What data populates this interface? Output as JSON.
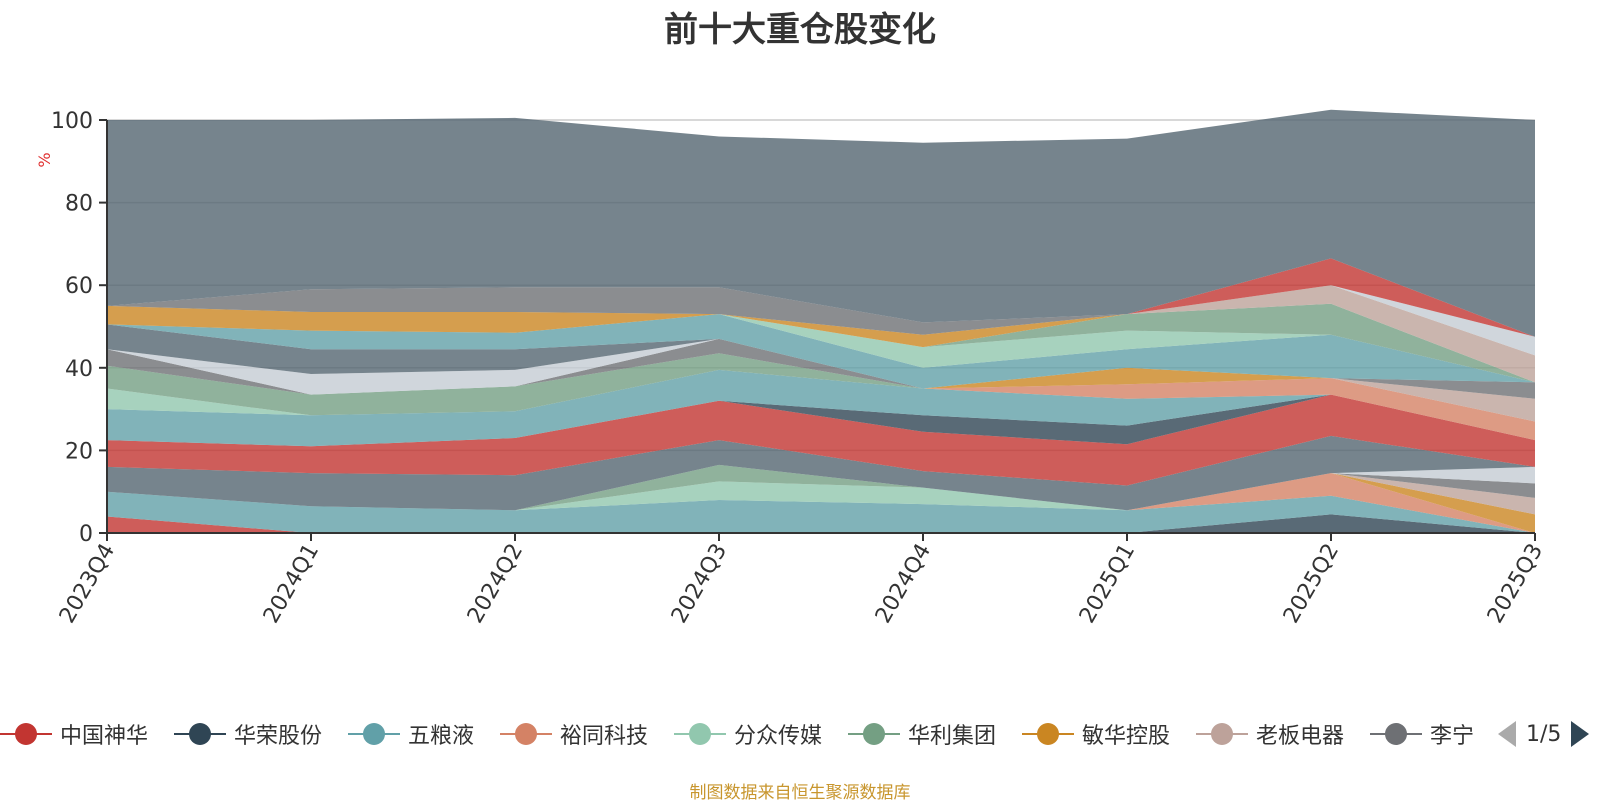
{
  "chart_data": {
    "type": "area",
    "stacked": true,
    "title": "前十大重仓股变化",
    "ylabel": "%",
    "ylim": [
      0,
      100
    ],
    "yticks": [
      0,
      20,
      40,
      60,
      80,
      100
    ],
    "grid": true,
    "legend_position": "bottom",
    "categories": [
      "2023Q4",
      "2024Q1",
      "2024Q2",
      "2024Q3",
      "2024Q4",
      "2025Q1",
      "2025Q2",
      "2025Q3"
    ],
    "series": [
      {
        "name": "中国神华",
        "color": "#c23531",
        "values": [
          4,
          0,
          0,
          0,
          0,
          0,
          0,
          0
        ]
      },
      {
        "name": "华荣股份",
        "color": "#2f4554",
        "values": [
          0,
          0,
          0,
          0,
          0,
          0,
          4.5,
          0
        ]
      },
      {
        "name": "五粮液",
        "color": "#61a0a8",
        "values": [
          6,
          6.5,
          5.5,
          8,
          7,
          5.5,
          4.5,
          0
        ]
      },
      {
        "name": "裕同科技",
        "color": "#d48265",
        "values": [
          0,
          0,
          0,
          0,
          0,
          0,
          5.5,
          0
        ]
      },
      {
        "name": "分众传媒",
        "color": "#91c7ae",
        "values": [
          0,
          0,
          0,
          4.5,
          4,
          0,
          0,
          0
        ]
      },
      {
        "name": "华利集团",
        "color": "#749f83",
        "values": [
          0,
          0,
          0,
          4,
          0,
          0,
          0,
          0
        ]
      },
      {
        "name": "敏华控股",
        "color": "#ca8622",
        "values": [
          0,
          0,
          0,
          0,
          0,
          0,
          0,
          4.5
        ]
      },
      {
        "name": "老板电器",
        "color": "#bda29a",
        "values": [
          0,
          0,
          0,
          0,
          0,
          0,
          0,
          4
        ]
      },
      {
        "name": "李宁",
        "color": "#6e7074",
        "values": [
          0,
          0,
          0,
          0,
          0,
          0,
          0,
          3.5
        ]
      },
      {
        "name": "",
        "color": "#c4ccd3",
        "values": [
          0,
          0,
          0,
          0,
          0,
          0,
          0,
          4
        ]
      },
      {
        "name": "",
        "color": "#546570",
        "values": [
          6,
          8,
          8.5,
          6,
          4,
          6,
          9,
          0
        ]
      },
      {
        "name": "",
        "color": "#c23531",
        "values": [
          6.5,
          6.5,
          9,
          9.5,
          9.5,
          10,
          10,
          6.5
        ]
      },
      {
        "name": "",
        "color": "#2f4554",
        "values": [
          0,
          0,
          0,
          0,
          4,
          4.5,
          0,
          0
        ]
      },
      {
        "name": "",
        "color": "#61a0a8",
        "values": [
          7.5,
          7.5,
          6.5,
          7.5,
          6.5,
          6.5,
          0,
          0
        ]
      },
      {
        "name": "",
        "color": "#d48265",
        "values": [
          0,
          0,
          0,
          0,
          0,
          3.5,
          4,
          4.5
        ]
      },
      {
        "name": "",
        "color": "#91c7ae",
        "values": [
          5,
          0,
          0,
          0,
          0,
          0,
          0,
          0
        ]
      },
      {
        "name": "",
        "color": "#749f83",
        "values": [
          5.5,
          5,
          6,
          4,
          0,
          0,
          0,
          0
        ]
      },
      {
        "name": "",
        "color": "#ca8622",
        "values": [
          0,
          0,
          0,
          0,
          0,
          4,
          0,
          0
        ]
      },
      {
        "name": "",
        "color": "#bda29a",
        "values": [
          0,
          0,
          0,
          0,
          0,
          0,
          0,
          5.5
        ]
      },
      {
        "name": "",
        "color": "#6e7074",
        "values": [
          4,
          0,
          0,
          3.5,
          0,
          0,
          0,
          4
        ]
      },
      {
        "name": "",
        "color": "#c4ccd3",
        "values": [
          0,
          5,
          4,
          0,
          0,
          0,
          0,
          0
        ]
      },
      {
        "name": "",
        "color": "#546570",
        "values": [
          6,
          6,
          5,
          0,
          0,
          0,
          0,
          0
        ]
      },
      {
        "name": "",
        "color": "#61a0a8",
        "values": [
          0,
          4.5,
          4,
          6,
          5,
          4.5,
          10.5,
          0
        ]
      },
      {
        "name": "",
        "color": "#91c7ae",
        "values": [
          0,
          0,
          0,
          0,
          5,
          4.5,
          0,
          0
        ]
      },
      {
        "name": "",
        "color": "#749f83",
        "values": [
          0,
          0,
          0,
          0,
          0,
          4,
          7.5,
          0
        ]
      },
      {
        "name": "",
        "color": "#bda29a",
        "values": [
          0,
          0,
          0,
          0,
          0,
          0,
          4.5,
          6.5
        ]
      },
      {
        "name": "",
        "color": "#c4ccd3",
        "values": [
          0,
          0,
          0,
          0,
          0,
          0,
          0,
          4.5
        ]
      },
      {
        "name": "",
        "color": "#c23531",
        "values": [
          0,
          0,
          0,
          0,
          0,
          0,
          6.5,
          0
        ]
      },
      {
        "name": "",
        "color": "#ca8622",
        "values": [
          4.5,
          4.5,
          5,
          0,
          3,
          0,
          0,
          0
        ]
      },
      {
        "name": "",
        "color": "#6e7074",
        "values": [
          0,
          5.5,
          6,
          6.5,
          3,
          0,
          0,
          0
        ]
      },
      {
        "name": "",
        "color": "#546570",
        "values": [
          45,
          41,
          41,
          36.5,
          43.5,
          42.5,
          36,
          52.5
        ]
      }
    ]
  },
  "legend": {
    "items": [
      "中国神华",
      "华荣股份",
      "五粮液",
      "裕同科技",
      "分众传媒",
      "华利集团",
      "敏华控股",
      "老板电器",
      "李宁"
    ],
    "page": "1/5"
  },
  "source_note": "制图数据来自恒生聚源数据库"
}
